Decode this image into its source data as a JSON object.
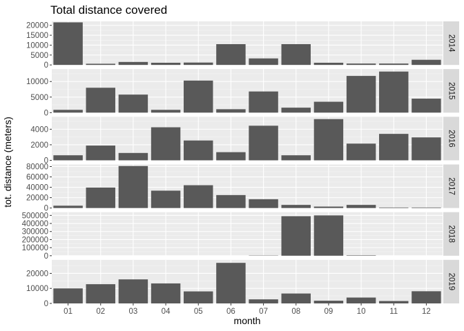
{
  "chart_data": {
    "type": "bar",
    "title": "Total distance covered",
    "xlabel": "month",
    "ylabel": "tot. distance (meters)",
    "categories": [
      "01",
      "02",
      "03",
      "04",
      "05",
      "06",
      "07",
      "08",
      "09",
      "10",
      "11",
      "12"
    ],
    "facets": [
      {
        "name": "2014",
        "ylim": [
          0,
          22000
        ],
        "yticks": [
          0,
          5000,
          10000,
          15000,
          20000
        ],
        "values": [
          21500,
          600,
          1500,
          1100,
          1200,
          10500,
          3300,
          10500,
          1100,
          700,
          700,
          2600
        ]
      },
      {
        "name": "2015",
        "ylim": [
          0,
          14000
        ],
        "yticks": [
          0,
          5000,
          10000
        ],
        "values": [
          900,
          8000,
          5800,
          900,
          10300,
          1100,
          6800,
          1600,
          3500,
          11800,
          13200,
          4500
        ]
      },
      {
        "name": "2016",
        "ylim": [
          0,
          5600
        ],
        "yticks": [
          0,
          2000,
          4000
        ],
        "values": [
          650,
          1900,
          950,
          4250,
          2550,
          1050,
          4450,
          650,
          5300,
          2150,
          3400,
          2950
        ]
      },
      {
        "name": "2017",
        "ylim": [
          0,
          84000
        ],
        "yticks": [
          0,
          20000,
          40000,
          60000,
          80000
        ],
        "values": [
          4500,
          39500,
          81000,
          33500,
          44000,
          25000,
          17000,
          6000,
          2800,
          6000,
          1000,
          1000
        ]
      },
      {
        "name": "2018",
        "ylim": [
          0,
          540000
        ],
        "yticks": [
          0,
          100000,
          200000,
          300000,
          400000,
          500000
        ],
        "values": [
          0,
          0,
          0,
          0,
          0,
          0,
          3000,
          490000,
          500000,
          5000,
          0,
          0
        ]
      },
      {
        "name": "2019",
        "ylim": [
          0,
          29000
        ],
        "yticks": [
          0,
          10000,
          20000
        ],
        "values": [
          10000,
          12800,
          16000,
          13300,
          8000,
          27000,
          2700,
          6600,
          1800,
          3900,
          1600,
          8100
        ]
      }
    ],
    "grid": true,
    "colors": {
      "bar": "#595959",
      "panel": "#ebebeb",
      "grid_major": "#ffffff",
      "strip": "#d9d9d9"
    }
  }
}
